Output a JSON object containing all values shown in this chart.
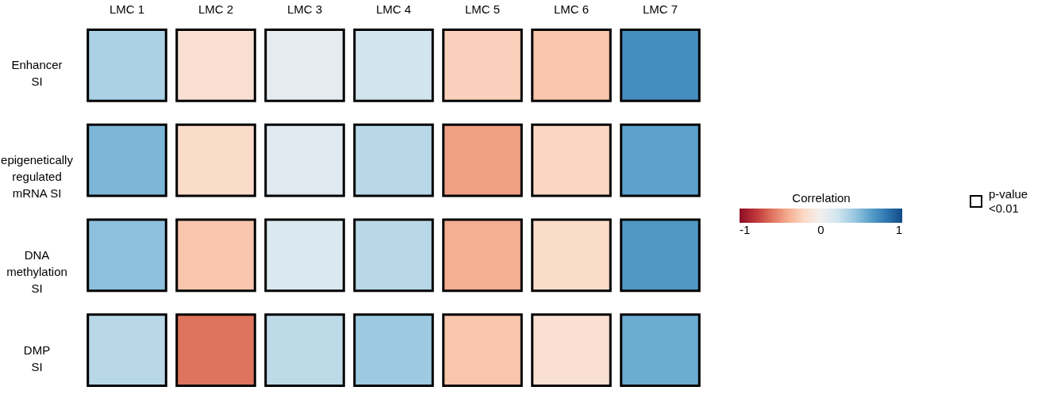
{
  "chart_data": {
    "type": "heatmap",
    "legend_title": "Correlation",
    "categories": [
      "LMC 1",
      "LMC 2",
      "LMC 3",
      "LMC 4",
      "LMC 5",
      "LMC 6",
      "LMC 7"
    ],
    "y_categories": [
      "Enhancer\nSI",
      "epigenetically\nregulated\nmRNA SI",
      "DNA\nmethylation\nSI",
      "DMP\nSI"
    ],
    "cells": [
      [
        0.35,
        -0.15,
        0.08,
        0.2,
        -0.25,
        -0.3,
        0.7
      ],
      [
        0.5,
        -0.2,
        0.12,
        0.3,
        -0.45,
        -0.22,
        0.6
      ],
      [
        0.45,
        -0.3,
        0.15,
        0.3,
        -0.4,
        -0.2,
        0.65
      ],
      [
        0.3,
        -0.6,
        0.28,
        0.4,
        -0.3,
        -0.15,
        0.55
      ]
    ],
    "clim": [
      -1,
      1
    ],
    "cticks": [
      -1,
      0,
      1
    ],
    "annotations": [
      "p-value\n<0.01"
    ]
  }
}
